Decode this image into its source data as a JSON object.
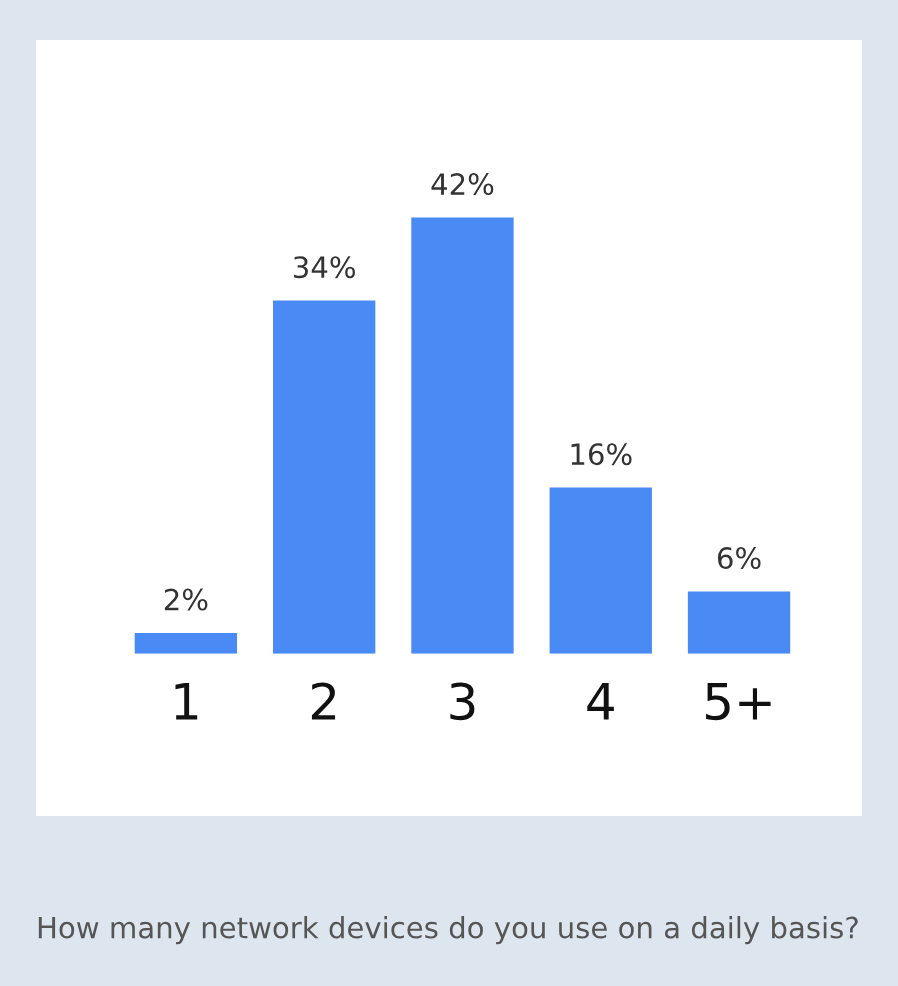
{
  "chart_data": {
    "type": "bar",
    "categories": [
      "1",
      "2",
      "3",
      "4",
      "5+"
    ],
    "values": [
      2,
      34,
      42,
      16,
      6
    ],
    "value_labels": [
      "2%",
      "34%",
      "42%",
      "16%",
      "6%"
    ],
    "color": "#4a8af4",
    "grid": false,
    "annotations": [
      "How many network devices do you use on a daily basis?"
    ]
  }
}
